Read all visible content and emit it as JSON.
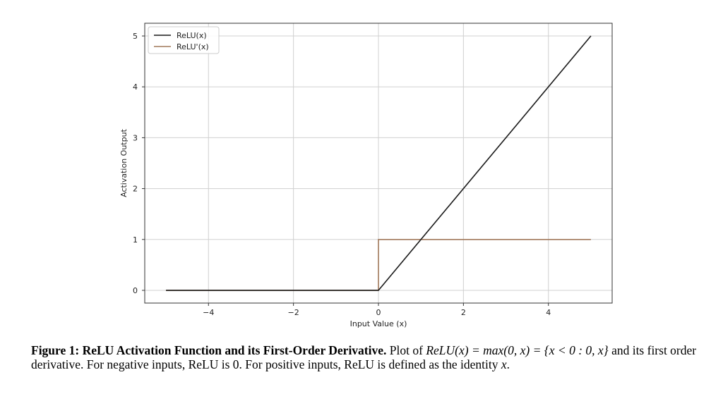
{
  "chart_data": {
    "type": "line",
    "xlabel": "Input Value (x)",
    "ylabel": "Activation Output",
    "xlim": [
      -5.5,
      5.5
    ],
    "ylim": [
      -0.25,
      5.25
    ],
    "xticks": [
      -4,
      -2,
      0,
      2,
      4
    ],
    "xtick_labels": [
      "−4",
      "−2",
      "0",
      "2",
      "4"
    ],
    "yticks": [
      0,
      1,
      2,
      3,
      4,
      5
    ],
    "ytick_labels": [
      "0",
      "1",
      "2",
      "3",
      "4",
      "5"
    ],
    "grid": true,
    "legend_position": "top-left",
    "series": [
      {
        "name": "ReLU(x)",
        "color": "#1a1a1a",
        "x": [
          -5,
          0,
          5
        ],
        "y": [
          0,
          0,
          5
        ]
      },
      {
        "name": "ReLU'(x)",
        "color": "#a0785a",
        "x": [
          -5,
          0,
          0,
          5
        ],
        "y": [
          0,
          0,
          1,
          1
        ]
      }
    ]
  },
  "caption": {
    "label": "Figure 1: ReLU Activation Function and its First-Order Derivative.",
    "text_1": "Plot of",
    "math_1": "ReLU(x) = max(0, x) = {x < 0 : 0, x}",
    "text_2": "and its first order derivative. For negative inputs, ReLU is 0. For positive inputs, ReLU is defined as the identity",
    "math_2": "x",
    "text_3": "."
  }
}
